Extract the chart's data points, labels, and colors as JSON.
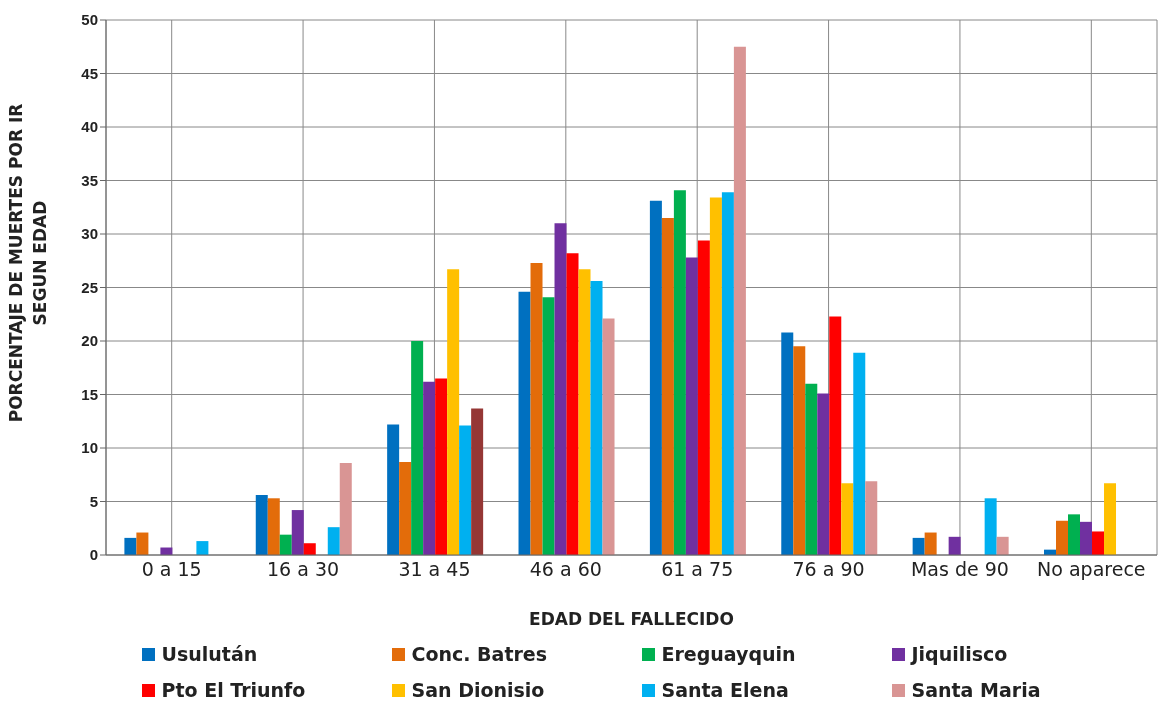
{
  "chart_data": {
    "type": "bar",
    "xlabel": "EDAD DEL FALLECIDO",
    "ylabel": "PORCENTAJE DE MUERTES POR IR SEGUN EDAD",
    "categories": [
      "0 a 15",
      "16 a 30",
      "31 a 45",
      "46 a 60",
      "61 a 75",
      "76 a 90",
      "Mas de 90",
      "No aparece"
    ],
    "series": [
      {
        "name": "Usulután",
        "color": "#0070c0",
        "values": [
          1.6,
          5.6,
          12.2,
          24.6,
          33.1,
          20.8,
          1.6,
          0.5
        ]
      },
      {
        "name": "Conc.  Batres",
        "color": "#e36c0a",
        "values": [
          2.1,
          5.3,
          8.7,
          27.3,
          31.5,
          19.5,
          2.1,
          3.2
        ]
      },
      {
        "name": "Ereguayquin",
        "color": "#00b050",
        "values": [
          0,
          1.9,
          20,
          24.1,
          34.1,
          16,
          0,
          3.8
        ]
      },
      {
        "name": "Jiquilisco",
        "color": "#7030a0",
        "values": [
          0.7,
          4.2,
          16.2,
          31,
          27.8,
          15.1,
          1.7,
          3.1
        ]
      },
      {
        "name": "Pto El Triunfo",
        "color": "#ff0000",
        "values": [
          0,
          1.1,
          16.5,
          28.2,
          29.4,
          22.3,
          0,
          2.2
        ]
      },
      {
        "name": "San Dionisio",
        "color": "#ffc000",
        "values": [
          0,
          0,
          26.7,
          26.7,
          33.4,
          6.7,
          0,
          6.7
        ]
      },
      {
        "name": "Santa Elena",
        "color": "#00b0f0",
        "values": [
          1.3,
          2.6,
          12.1,
          25.6,
          33.9,
          18.9,
          5.3,
          0
        ]
      },
      {
        "name": "Santa Maria",
        "color": "#d99594",
        "colors": [
          "#d99594",
          "#d99594",
          "#953735",
          "#d99594",
          "#d99594",
          "#d99594",
          "#d99594",
          "#d99594"
        ],
        "values": [
          0,
          8.6,
          13.7,
          22.1,
          47.5,
          6.9,
          1.7,
          0
        ]
      }
    ],
    "ylim": [
      0,
      50
    ],
    "yticks": [
      0,
      5,
      10,
      15,
      20,
      25,
      30,
      35,
      40,
      45,
      50
    ],
    "grid": true,
    "legend": "bottom"
  }
}
